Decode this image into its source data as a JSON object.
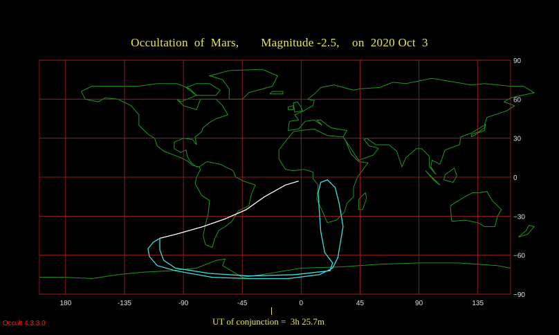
{
  "title": "Occultation  of  Mars,       Magnitude -2.5,    on  2020 Oct  3",
  "ut_text": "UT of conjunction =  3h 25.7m",
  "version": "Occult 4.3.3.0",
  "grid": {
    "lon_range": [
      -200,
      160
    ],
    "lat_range": [
      -90,
      90
    ],
    "lon_ticks": [
      -180,
      -135,
      -90,
      -45,
      0,
      45,
      90,
      135
    ],
    "lon_labels": [
      "180",
      "-135",
      "-90",
      "-45",
      "0",
      "45",
      "90",
      "135"
    ],
    "lat_ticks": [
      90,
      60,
      30,
      0,
      -30,
      -60,
      -90
    ],
    "lat_labels": [
      "90",
      "60",
      "30",
      "0",
      "−30",
      "−60",
      "−90"
    ]
  },
  "colors": {
    "background": "#000000",
    "grid": "#b02020",
    "coast": "#1e9a1e",
    "title": "#e8e84a",
    "limit_line": "#ffffff",
    "occultation_limit": "#40e0e0",
    "version": "#ff2020"
  },
  "paths": {
    "occultation_path": [
      [
        -2,
        -3
      ],
      [
        -12,
        -6
      ],
      [
        -28,
        -15
      ],
      [
        -42,
        -25
      ],
      [
        -58,
        -32
      ],
      [
        -75,
        -38
      ],
      [
        -96,
        -44
      ],
      [
        -108,
        -47
      ]
    ],
    "outer_loop": [
      [
        -108,
        -47
      ],
      [
        -113,
        -50
      ],
      [
        -117,
        -55
      ],
      [
        -116,
        -61
      ],
      [
        -110,
        -68
      ],
      [
        -96,
        -72
      ],
      [
        -68,
        -77
      ],
      [
        -40,
        -78
      ],
      [
        -10,
        -78
      ],
      [
        14,
        -75
      ],
      [
        24,
        -70
      ],
      [
        28,
        -62
      ],
      [
        30,
        -50
      ],
      [
        32,
        -38
      ],
      [
        29,
        -20
      ],
      [
        26,
        -8
      ],
      [
        20,
        -2
      ],
      [
        15,
        -4
      ],
      [
        13,
        -12
      ],
      [
        14,
        -28
      ],
      [
        15,
        -42
      ],
      [
        18,
        -58
      ],
      [
        24,
        -66
      ],
      [
        22,
        -72
      ],
      [
        -5,
        -75
      ],
      [
        -40,
        -76
      ],
      [
        -70,
        -74
      ],
      [
        -96,
        -70
      ],
      [
        -105,
        -64
      ],
      [
        -108,
        -56
      ],
      [
        -108,
        -47
      ]
    ]
  }
}
